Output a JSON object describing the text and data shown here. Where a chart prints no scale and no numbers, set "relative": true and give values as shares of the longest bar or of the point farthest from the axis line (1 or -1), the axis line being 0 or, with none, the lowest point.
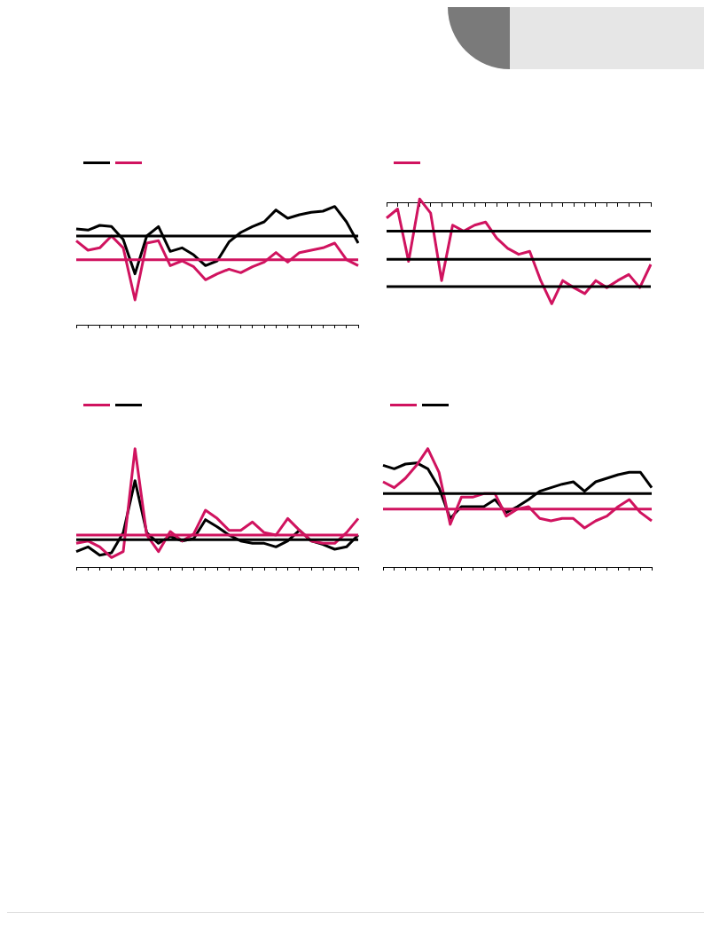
{
  "chart_data": [
    {
      "type": "line",
      "relative": true,
      "categories": [
        null,
        null,
        null,
        null,
        null,
        null,
        null,
        null,
        null,
        null,
        null,
        null,
        null,
        null,
        null,
        null,
        null,
        null,
        null,
        null,
        null,
        null,
        null,
        null,
        null
      ],
      "series": [
        {
          "color": "#000000",
          "values": [
            0.81,
            0.8,
            0.84,
            0.83,
            0.72,
            0.43,
            0.75,
            0.83,
            0.62,
            0.65,
            0.59,
            0.5,
            0.54,
            0.7,
            0.78,
            0.83,
            0.87,
            0.97,
            0.9,
            0.93,
            0.95,
            0.96,
            1,
            0.87,
            0.69
          ]
        },
        {
          "color": "#d0135f",
          "values": [
            0.71,
            0.63,
            0.65,
            0.75,
            0.65,
            0.21,
            0.69,
            0.71,
            0.5,
            0.54,
            0.49,
            0.38,
            0.43,
            0.47,
            0.44,
            0.49,
            0.53,
            0.61,
            0.53,
            0.61,
            0.63,
            0.65,
            0.69,
            0.55,
            0.5
          ]
        }
      ],
      "ref_lines": [
        {
          "axis": "y",
          "value": 0.75,
          "color": "#000000"
        },
        {
          "axis": "y",
          "value": 0.55,
          "color": "#d0135f"
        }
      ]
    },
    {
      "type": "line",
      "relative": true,
      "categories": [
        null,
        null,
        null,
        null,
        null,
        null,
        null,
        null,
        null,
        null,
        null,
        null,
        null,
        null,
        null,
        null,
        null,
        null,
        null,
        null,
        null,
        null,
        null,
        null,
        null
      ],
      "series": [
        {
          "color": "#d0135f",
          "values": [
            -0.15,
            -0.06,
            -0.58,
            0.04,
            -0.1,
            -0.77,
            -0.22,
            -0.28,
            -0.22,
            -0.19,
            -0.35,
            -0.45,
            -0.51,
            -0.48,
            -0.77,
            -1,
            -0.77,
            -0.84,
            -0.9,
            -0.77,
            -0.84,
            -0.77,
            -0.71,
            -0.84,
            -0.61
          ]
        }
      ],
      "ref_lines": [
        {
          "axis": "y",
          "value": -0.28,
          "color": "#000000"
        },
        {
          "axis": "y",
          "value": -0.56,
          "color": "#000000"
        },
        {
          "axis": "y",
          "value": -0.83,
          "color": "#000000"
        }
      ]
    },
    {
      "type": "line",
      "relative": true,
      "categories": [
        null,
        null,
        null,
        null,
        null,
        null,
        null,
        null,
        null,
        null,
        null,
        null,
        null,
        null,
        null,
        null,
        null,
        null,
        null,
        null,
        null,
        null,
        null,
        null,
        null
      ],
      "series": [
        {
          "color": "#d0135f",
          "values": [
            0.2,
            0.22,
            0.17,
            0.08,
            0.13,
            1,
            0.27,
            0.13,
            0.3,
            0.22,
            0.28,
            0.48,
            0.41,
            0.31,
            0.31,
            0.38,
            0.29,
            0.27,
            0.41,
            0.31,
            0.22,
            0.2,
            0.2,
            0.29,
            0.41
          ]
        },
        {
          "color": "#000000",
          "values": [
            0.13,
            0.17,
            0.1,
            0.12,
            0.29,
            0.73,
            0.29,
            0.2,
            0.26,
            0.22,
            0.24,
            0.4,
            0.34,
            0.27,
            0.22,
            0.2,
            0.2,
            0.17,
            0.22,
            0.31,
            0.22,
            0.19,
            0.15,
            0.17,
            0.27
          ]
        }
      ],
      "ref_lines": [
        {
          "axis": "y",
          "value": 0.27,
          "color": "#d0135f"
        },
        {
          "axis": "y",
          "value": 0.23,
          "color": "#000000"
        }
      ]
    },
    {
      "type": "line",
      "relative": true,
      "categories": [
        null,
        null,
        null,
        null,
        null,
        null,
        null,
        null,
        null,
        null,
        null,
        null,
        null,
        null,
        null,
        null,
        null,
        null,
        null,
        null,
        null,
        null,
        null,
        null,
        null
      ],
      "series": [
        {
          "color": "#d0135f",
          "values": [
            0.72,
            0.67,
            0.75,
            0.86,
            1,
            0.8,
            0.36,
            0.59,
            0.59,
            0.62,
            0.62,
            0.43,
            0.49,
            0.51,
            0.41,
            0.39,
            0.41,
            0.41,
            0.33,
            0.39,
            0.43,
            0.51,
            0.57,
            0.46,
            0.39
          ]
        },
        {
          "color": "#000000",
          "values": [
            0.86,
            0.83,
            0.87,
            0.88,
            0.83,
            0.67,
            0.41,
            0.51,
            0.51,
            0.51,
            0.57,
            0.46,
            0.51,
            0.57,
            0.64,
            0.67,
            0.7,
            0.72,
            0.64,
            0.72,
            0.75,
            0.78,
            0.8,
            0.8,
            0.67
          ]
        }
      ],
      "ref_lines": [
        {
          "axis": "y",
          "value": 0.62,
          "color": "#000000"
        },
        {
          "axis": "y",
          "value": 0.49,
          "color": "#d0135f"
        }
      ]
    }
  ]
}
